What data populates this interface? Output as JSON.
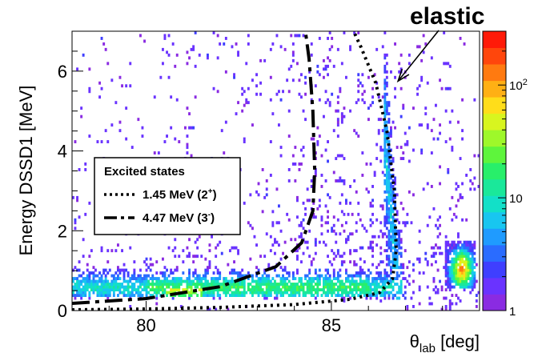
{
  "chart_data": {
    "type": "heatmap",
    "title": "",
    "xlabel": "θ",
    "xlabel_sub": "lab",
    "xlabel_unit": " [deg]",
    "ylabel": "Energy DSSD1 [MeV]",
    "xlim": [
      78,
      89
    ],
    "ylim": [
      0,
      7
    ],
    "x_ticks": [
      80,
      85
    ],
    "y_ticks": [
      0,
      2,
      4,
      6
    ],
    "colorbar": {
      "scale": "log",
      "range": [
        1,
        300
      ],
      "ticks": [
        {
          "value": 1,
          "label": "1"
        },
        {
          "value": 10,
          "label": "10"
        },
        {
          "value": 100,
          "label": "10",
          "sup": "2"
        }
      ],
      "colors": [
        "#8a2be2",
        "#6a33ff",
        "#3f3fff",
        "#2a6cff",
        "#1f9bff",
        "#18c6f0",
        "#12e0c8",
        "#1ae89a",
        "#28ef6a",
        "#5ef53c",
        "#9ef82a",
        "#d8f51f",
        "#ffdd1a",
        "#ffb014",
        "#ff7a10",
        "#ff460c",
        "#ff1a08"
      ]
    },
    "density_regions": [
      {
        "name": "low-energy band",
        "x": [
          78.2,
          86.8
        ],
        "y": [
          0.3,
          1.0
        ],
        "level": "medium"
      },
      {
        "name": "elastic ridge",
        "x": [
          86.6,
          88.8
        ],
        "y": [
          0.6,
          6.6
        ],
        "level": "medium"
      },
      {
        "name": "hot spot",
        "x": [
          88.1,
          88.8
        ],
        "y": [
          0.6,
          1.6
        ],
        "level": "high"
      },
      {
        "name": "scattered background",
        "x": [
          78,
          89
        ],
        "y": [
          0,
          7
        ],
        "level": "low"
      }
    ],
    "series": [
      {
        "name": "1.45 MeV (2",
        "name_sup": "+",
        "name_end": ")",
        "style": "dotted",
        "x": [
          78.0,
          80.0,
          82.0,
          84.0,
          85.5,
          86.3,
          86.65,
          86.75,
          86.7,
          86.5,
          86.2,
          85.8,
          85.6
        ],
        "y": [
          0.02,
          0.04,
          0.08,
          0.15,
          0.28,
          0.45,
          0.8,
          1.5,
          3.0,
          4.5,
          5.7,
          6.6,
          7.0
        ]
      },
      {
        "name": "4.47 MeV (3",
        "name_sup": "-",
        "name_end": ")",
        "style": "dashed",
        "x": [
          78.0,
          80.0,
          82.0,
          83.5,
          84.2,
          84.5,
          84.55,
          84.5,
          84.4,
          84.3
        ],
        "y": [
          0.18,
          0.3,
          0.6,
          1.1,
          1.7,
          2.5,
          3.5,
          5.0,
          6.3,
          7.0
        ]
      }
    ],
    "legend": {
      "title": "Excited states",
      "position": "middle-left"
    },
    "annotation": {
      "text": "elastic",
      "target": {
        "x": 86.8,
        "y": 5.75
      }
    }
  }
}
